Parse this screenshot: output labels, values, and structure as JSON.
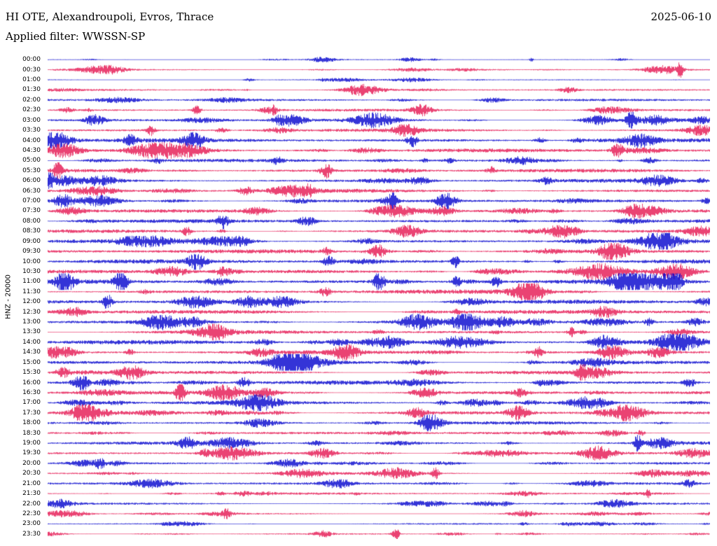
{
  "header": {
    "station": "HI OTE, Alexandroupoli, Evros, Thrace",
    "date": "2025-06-10",
    "filter": "Applied filter: WWSSN-SP"
  },
  "plot": {
    "channel_label": "HNZ - 20000"
  },
  "chart_data": {
    "type": "line",
    "subtype": "helicorder-seismogram",
    "title": "HI OTE, Alexandroupoli, Evros, Thrace",
    "date": "2025-06-10",
    "filter": "WWSSN-SP",
    "channel": "HNZ",
    "gain_scale": "20000",
    "minutes_per_row": 30,
    "rows": [
      "00:00",
      "00:30",
      "01:00",
      "01:30",
      "02:00",
      "02:30",
      "03:00",
      "03:30",
      "04:00",
      "04:30",
      "05:00",
      "05:30",
      "06:00",
      "06:30",
      "07:00",
      "07:30",
      "08:00",
      "08:30",
      "09:00",
      "09:30",
      "10:00",
      "10:30",
      "11:00",
      "11:30",
      "12:00",
      "12:30",
      "13:00",
      "13:30",
      "14:00",
      "14:30",
      "15:00",
      "15:30",
      "16:00",
      "16:30",
      "17:00",
      "17:30",
      "18:00",
      "18:30",
      "19:00",
      "19:30",
      "20:00",
      "20:30",
      "21:00",
      "21:30",
      "22:00",
      "22:30",
      "23:00",
      "23:30"
    ],
    "row_colors_alternate": [
      "#0000cd",
      "#e4134f"
    ],
    "row_activity": [
      0.7,
      0.8,
      0.8,
      1.3,
      1.6,
      1.7,
      1.9,
      2.1,
      2.6,
      2.4,
      2.2,
      2.4,
      2.3,
      2.4,
      2.2,
      2.1,
      2.4,
      2.3,
      2.4,
      2.6,
      2.7,
      2.6,
      2.9,
      2.8,
      2.6,
      2.8,
      2.6,
      2.5,
      2.7,
      2.5,
      2.6,
      2.4,
      2.6,
      2.3,
      2.4,
      2.2,
      2.1,
      1.9,
      2.0,
      1.7,
      1.5,
      1.6,
      1.7,
      1.5,
      1.3,
      1.1,
      1.0,
      0.9
    ],
    "notable_events": [
      {
        "row": 0,
        "x": 0.73,
        "gain": 5,
        "width": 3
      },
      {
        "row": 1,
        "x": 0.955,
        "gain": 14,
        "width": 4
      },
      {
        "row": 3,
        "x": 0.3,
        "gain": 5,
        "width": 5
      },
      {
        "row": 5,
        "x": 0.225,
        "gain": 9,
        "width": 6
      },
      {
        "row": 6,
        "x": 0.88,
        "gain": 8,
        "width": 7
      },
      {
        "row": 7,
        "x": 0.155,
        "gain": 6,
        "width": 6
      },
      {
        "row": 8,
        "x": 0.55,
        "gain": 5,
        "width": 7
      },
      {
        "row": 9,
        "x": 0.86,
        "gain": 7,
        "width": 8
      },
      {
        "row": 11,
        "x": 0.42,
        "gain": 6,
        "width": 8
      },
      {
        "row": 14,
        "x": 0.52,
        "gain": 6,
        "width": 6
      },
      {
        "row": 17,
        "x": 0.21,
        "gain": 5,
        "width": 6
      },
      {
        "row": 19,
        "x": 0.5,
        "gain": 7,
        "width": 8
      },
      {
        "row": 22,
        "x": 0.5,
        "gain": 8,
        "width": 8
      },
      {
        "row": 24,
        "x": 0.09,
        "gain": 6,
        "width": 6
      },
      {
        "row": 27,
        "x": 0.79,
        "gain": 7,
        "width": 5
      },
      {
        "row": 29,
        "x": 0.74,
        "gain": 8,
        "width": 5
      },
      {
        "row": 33,
        "x": 0.2,
        "gain": 6,
        "width": 6
      },
      {
        "row": 35,
        "x": 0.87,
        "gain": 6,
        "width": 6
      },
      {
        "row": 38,
        "x": 0.89,
        "gain": 9,
        "width": 4
      },
      {
        "row": 41,
        "x": 0.585,
        "gain": 8,
        "width": 5
      },
      {
        "row": 43,
        "x": 0.905,
        "gain": 11,
        "width": 4
      },
      {
        "row": 45,
        "x": 0.27,
        "gain": 6,
        "width": 5
      },
      {
        "row": 47,
        "x": 0.525,
        "gain": 12,
        "width": 5
      }
    ],
    "notes": "Continuous 24-hour vertical-component (HNZ) recording, 30 minutes per line, colors alternating blue/red per half hour. Amplitudes are ambient noise with local bursts; x of notable_events is fraction of line width, gain is relative burst amplitude."
  }
}
